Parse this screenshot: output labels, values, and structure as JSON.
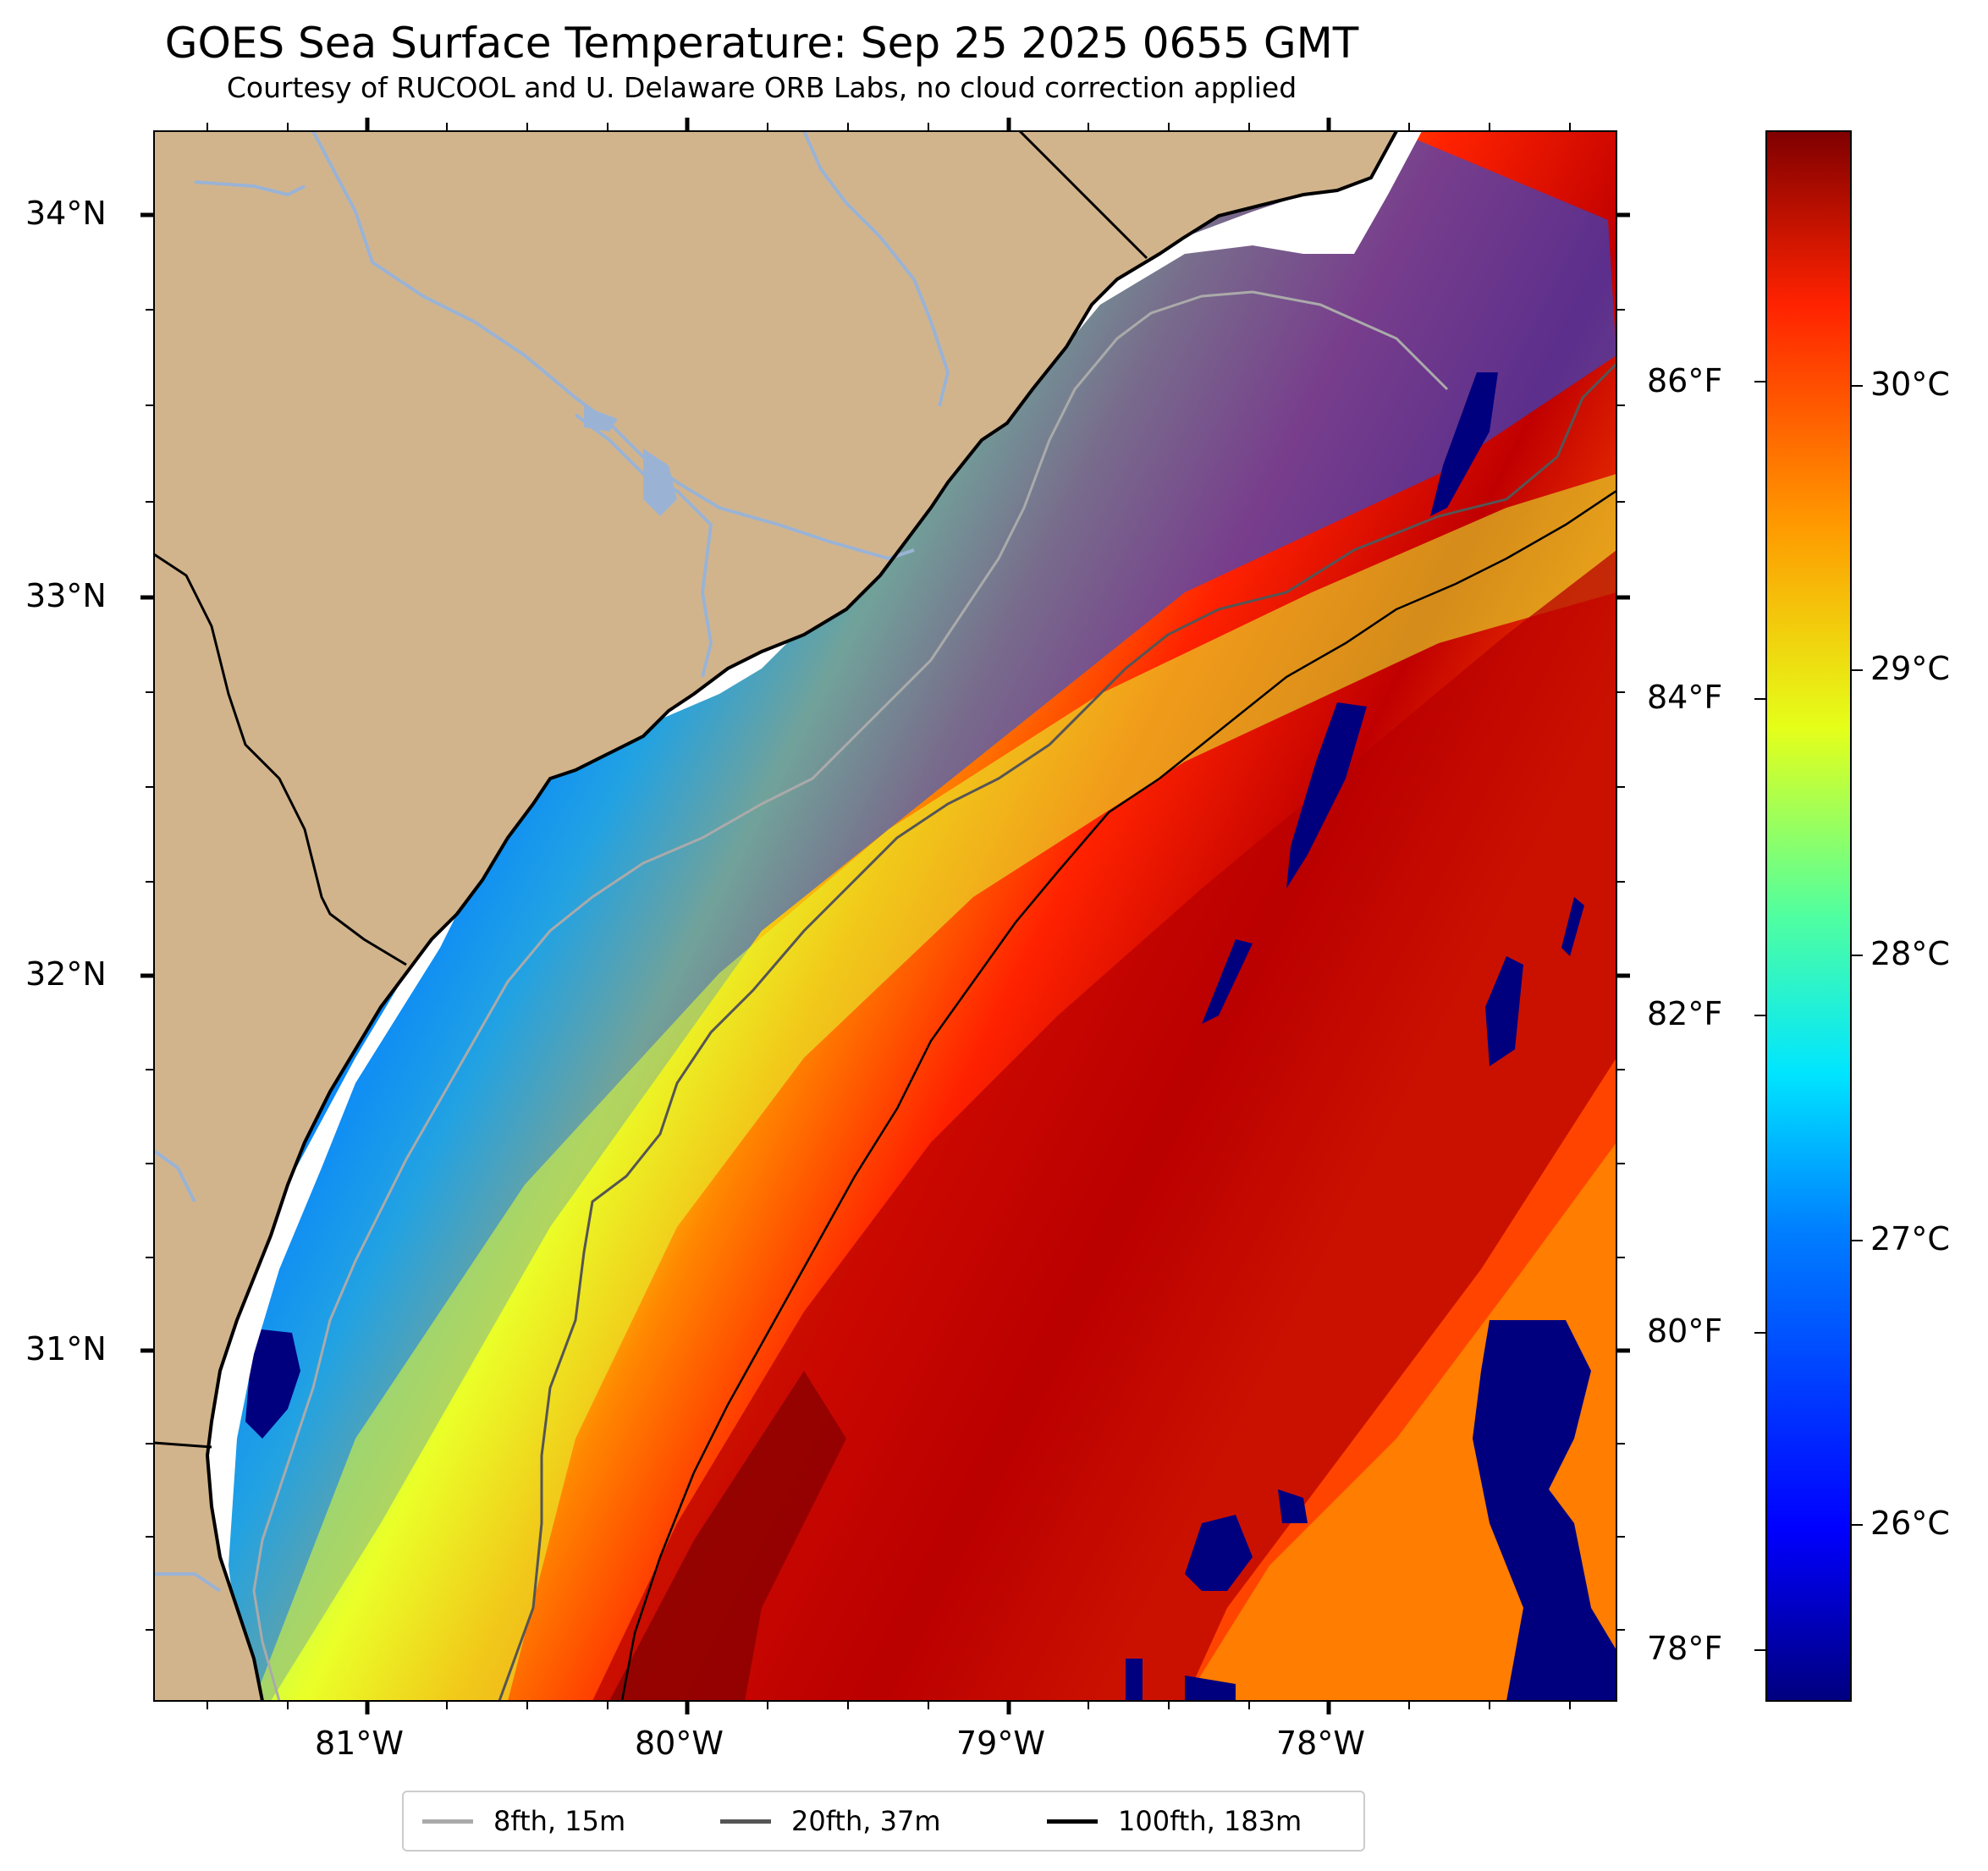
{
  "title": "GOES Sea Surface Temperature: Sep 25 2025 0655 GMT",
  "subtitle": "Courtesy of RUCOOL and U. Delaware ORB Labs, no cloud correction applied",
  "axes": {
    "lat_ticks": [
      "34°N",
      "33°N",
      "32°N",
      "31°N"
    ],
    "lon_ticks": [
      "81°W",
      "80°W",
      "79°W",
      "78°W"
    ]
  },
  "colorbar": {
    "fahrenheit_labels": [
      "86°F",
      "84°F",
      "82°F",
      "80°F",
      "78°F"
    ],
    "celsius_labels": [
      "30°C",
      "29°C",
      "28°C",
      "27°C",
      "26°C"
    ],
    "colors": [
      "#00007f",
      "#0000ff",
      "#007fff",
      "#00e5ff",
      "#7fff7f",
      "#e5ff19",
      "#ff9900",
      "#ff2200",
      "#7f0000"
    ]
  },
  "legend": [
    {
      "label": "8fth, 15m",
      "color": "#aaaaaa"
    },
    {
      "label": "20fth, 37m",
      "color": "#555555"
    },
    {
      "label": "100fth, 183m",
      "color": "#000000"
    }
  ],
  "colors": {
    "land": "#d2b48c",
    "river": "#9ab3d5",
    "coast": "#000000",
    "no_data": "#ffffff"
  }
}
